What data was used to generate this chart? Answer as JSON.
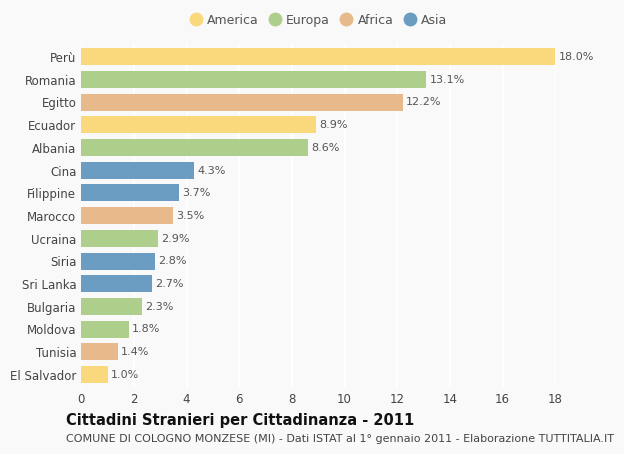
{
  "countries": [
    "Perù",
    "Romania",
    "Egitto",
    "Ecuador",
    "Albania",
    "Cina",
    "Filippine",
    "Marocco",
    "Ucraina",
    "Siria",
    "Sri Lanka",
    "Bulgaria",
    "Moldova",
    "Tunisia",
    "El Salvador"
  ],
  "values": [
    18.0,
    13.1,
    12.2,
    8.9,
    8.6,
    4.3,
    3.7,
    3.5,
    2.9,
    2.8,
    2.7,
    2.3,
    1.8,
    1.4,
    1.0
  ],
  "continents": [
    "America",
    "Europa",
    "Africa",
    "America",
    "Europa",
    "Asia",
    "Asia",
    "Africa",
    "Europa",
    "Asia",
    "Asia",
    "Europa",
    "Europa",
    "Africa",
    "America"
  ],
  "colors": {
    "America": "#FAD97C",
    "Europa": "#AECE8C",
    "Africa": "#E8B98A",
    "Asia": "#6B9DC2"
  },
  "legend_order": [
    "America",
    "Europa",
    "Africa",
    "Asia"
  ],
  "legend_colors": [
    "#FAD97C",
    "#AECE8C",
    "#E8B98A",
    "#6B9DC2"
  ],
  "title": "Cittadini Stranieri per Cittadinanza - 2011",
  "subtitle": "COMUNE DI COLOGNO MONZESE (MI) - Dati ISTAT al 1° gennaio 2011 - Elaborazione TUTTITALIA.IT",
  "xlim": [
    0,
    18
  ],
  "xticks": [
    0,
    2,
    4,
    6,
    8,
    10,
    12,
    14,
    16,
    18
  ],
  "background_color": "#f9f9f9",
  "bar_height": 0.75,
  "title_fontsize": 10.5,
  "subtitle_fontsize": 8,
  "label_fontsize": 8,
  "tick_fontsize": 8.5,
  "legend_fontsize": 9
}
